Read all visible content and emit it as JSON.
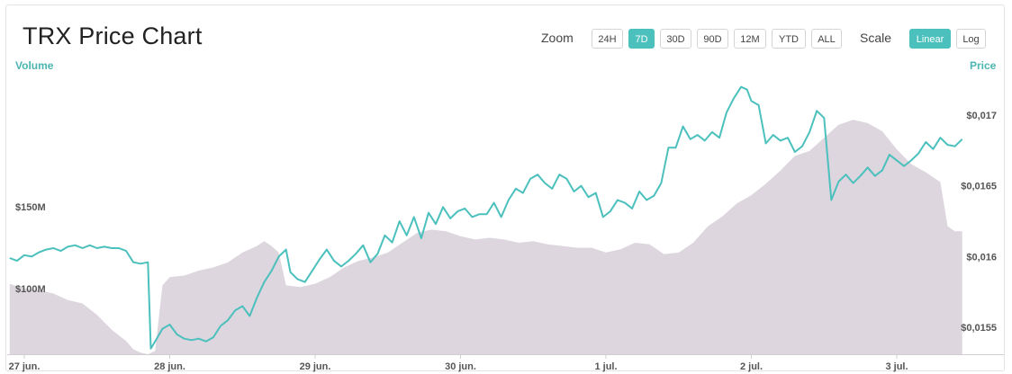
{
  "header": {
    "title": "TRX Price Chart",
    "zoom_label": "Zoom",
    "zoom_options": [
      "24H",
      "7D",
      "30D",
      "90D",
      "12M",
      "YTD",
      "ALL"
    ],
    "zoom_selected": "7D",
    "scale_label": "Scale",
    "scale_options": [
      "Linear",
      "Log"
    ],
    "scale_selected": "Linear"
  },
  "colors": {
    "price_line": "#4bc0bd",
    "volume_area": "#ddd6de",
    "active_button": "#4bc0bd"
  },
  "chart_data": {
    "type": "line",
    "title": "TRX Price Chart",
    "xlabel": "",
    "ylabel_left": "Volume",
    "ylabel_right": "Price",
    "x_ticks": [
      "27 jun.",
      "28 jun.",
      "29 jun.",
      "30 jun.",
      "1 jul.",
      "2 jul.",
      "3 jul."
    ],
    "x_range_days": [
      -0.1,
      6.45
    ],
    "price_axis": {
      "ticks": [
        "$0,017",
        "$0,0165",
        "$0,016",
        "$0,0155"
      ],
      "values": [
        0.017,
        0.0165,
        0.016,
        0.0155
      ],
      "range": [
        0.01531,
        0.01728
      ]
    },
    "volume_axis": {
      "ticks": [
        "$150M",
        "$100M"
      ],
      "values": [
        150000000,
        100000000
      ],
      "range": [
        60000000,
        230000000
      ]
    },
    "series": [
      {
        "name": "Price",
        "kind": "line",
        "points": [
          [
            -0.1,
            0.01599
          ],
          [
            -0.05,
            0.01597
          ],
          [
            0.0,
            0.01601
          ],
          [
            0.05,
            0.016
          ],
          [
            0.1,
            0.01603
          ],
          [
            0.15,
            0.01605
          ],
          [
            0.2,
            0.01606
          ],
          [
            0.25,
            0.01604
          ],
          [
            0.3,
            0.01607
          ],
          [
            0.35,
            0.01608
          ],
          [
            0.4,
            0.01606
          ],
          [
            0.45,
            0.01608
          ],
          [
            0.5,
            0.01606
          ],
          [
            0.55,
            0.01607
          ],
          [
            0.6,
            0.01606
          ],
          [
            0.65,
            0.01606
          ],
          [
            0.7,
            0.01604
          ],
          [
            0.75,
            0.01596
          ],
          [
            0.8,
            0.01595
          ],
          [
            0.85,
            0.01596
          ],
          [
            0.87,
            0.01535
          ],
          [
            0.9,
            0.0154
          ],
          [
            0.95,
            0.01549
          ],
          [
            1.0,
            0.01552
          ],
          [
            1.05,
            0.01545
          ],
          [
            1.1,
            0.01542
          ],
          [
            1.15,
            0.01541
          ],
          [
            1.2,
            0.01542
          ],
          [
            1.25,
            0.0154
          ],
          [
            1.3,
            0.01543
          ],
          [
            1.35,
            0.01551
          ],
          [
            1.4,
            0.01555
          ],
          [
            1.45,
            0.01562
          ],
          [
            1.5,
            0.01565
          ],
          [
            1.55,
            0.01558
          ],
          [
            1.6,
            0.01571
          ],
          [
            1.65,
            0.01582
          ],
          [
            1.7,
            0.0159
          ],
          [
            1.75,
            0.016
          ],
          [
            1.8,
            0.01605
          ],
          [
            1.83,
            0.01589
          ],
          [
            1.88,
            0.01584
          ],
          [
            1.93,
            0.01582
          ],
          [
            1.98,
            0.0159
          ],
          [
            2.03,
            0.01598
          ],
          [
            2.08,
            0.01605
          ],
          [
            2.13,
            0.01597
          ],
          [
            2.18,
            0.01593
          ],
          [
            2.23,
            0.01597
          ],
          [
            2.28,
            0.01602
          ],
          [
            2.33,
            0.01608
          ],
          [
            2.38,
            0.01596
          ],
          [
            2.43,
            0.01602
          ],
          [
            2.48,
            0.01615
          ],
          [
            2.53,
            0.0161
          ],
          [
            2.58,
            0.01625
          ],
          [
            2.63,
            0.01615
          ],
          [
            2.68,
            0.01628
          ],
          [
            2.73,
            0.01613
          ],
          [
            2.78,
            0.01631
          ],
          [
            2.83,
            0.01623
          ],
          [
            2.88,
            0.01635
          ],
          [
            2.93,
            0.01627
          ],
          [
            2.98,
            0.01632
          ],
          [
            3.03,
            0.01634
          ],
          [
            3.08,
            0.01628
          ],
          [
            3.13,
            0.0163
          ],
          [
            3.18,
            0.0163
          ],
          [
            3.23,
            0.01638
          ],
          [
            3.28,
            0.01628
          ],
          [
            3.33,
            0.0164
          ],
          [
            3.38,
            0.01648
          ],
          [
            3.43,
            0.01645
          ],
          [
            3.48,
            0.01655
          ],
          [
            3.53,
            0.01658
          ],
          [
            3.58,
            0.01652
          ],
          [
            3.63,
            0.01648
          ],
          [
            3.68,
            0.01658
          ],
          [
            3.73,
            0.01655
          ],
          [
            3.78,
            0.01646
          ],
          [
            3.83,
            0.0165
          ],
          [
            3.88,
            0.01642
          ],
          [
            3.93,
            0.01645
          ],
          [
            3.98,
            0.01628
          ],
          [
            4.03,
            0.01632
          ],
          [
            4.08,
            0.0164
          ],
          [
            4.13,
            0.01638
          ],
          [
            4.18,
            0.01634
          ],
          [
            4.23,
            0.01646
          ],
          [
            4.28,
            0.0164
          ],
          [
            4.33,
            0.01643
          ],
          [
            4.38,
            0.01652
          ],
          [
            4.43,
            0.01677
          ],
          [
            4.48,
            0.01677
          ],
          [
            4.53,
            0.01692
          ],
          [
            4.58,
            0.01683
          ],
          [
            4.63,
            0.01686
          ],
          [
            4.68,
            0.01682
          ],
          [
            4.73,
            0.01688
          ],
          [
            4.78,
            0.01684
          ],
          [
            4.83,
            0.01702
          ],
          [
            4.88,
            0.01712
          ],
          [
            4.93,
            0.0172
          ],
          [
            4.97,
            0.01718
          ],
          [
            5.0,
            0.0171
          ],
          [
            5.05,
            0.01707
          ],
          [
            5.1,
            0.0168
          ],
          [
            5.15,
            0.01686
          ],
          [
            5.2,
            0.01682
          ],
          [
            5.25,
            0.01684
          ],
          [
            5.3,
            0.01674
          ],
          [
            5.35,
            0.01678
          ],
          [
            5.4,
            0.01688
          ],
          [
            5.45,
            0.01703
          ],
          [
            5.5,
            0.01698
          ],
          [
            5.55,
            0.0164
          ],
          [
            5.6,
            0.01653
          ],
          [
            5.65,
            0.01658
          ],
          [
            5.7,
            0.01652
          ],
          [
            5.75,
            0.01657
          ],
          [
            5.8,
            0.01663
          ],
          [
            5.85,
            0.01657
          ],
          [
            5.9,
            0.01661
          ],
          [
            5.95,
            0.01672
          ],
          [
            6.0,
            0.01668
          ],
          [
            6.05,
            0.01664
          ],
          [
            6.1,
            0.01668
          ],
          [
            6.15,
            0.01673
          ],
          [
            6.2,
            0.01681
          ],
          [
            6.25,
            0.01676
          ],
          [
            6.3,
            0.01684
          ],
          [
            6.35,
            0.01679
          ],
          [
            6.4,
            0.01678
          ],
          [
            6.45,
            0.01683
          ]
        ]
      },
      {
        "name": "Volume",
        "kind": "area",
        "points": [
          [
            -0.1,
            103000000
          ],
          [
            0.0,
            100000000
          ],
          [
            0.1,
            99000000
          ],
          [
            0.2,
            97000000
          ],
          [
            0.3,
            93000000
          ],
          [
            0.4,
            91000000
          ],
          [
            0.5,
            84000000
          ],
          [
            0.6,
            75000000
          ],
          [
            0.7,
            68000000
          ],
          [
            0.75,
            63000000
          ],
          [
            0.8,
            61000000
          ],
          [
            0.85,
            60000000
          ],
          [
            0.9,
            62000000
          ],
          [
            0.95,
            102000000
          ],
          [
            1.0,
            107000000
          ],
          [
            1.1,
            108000000
          ],
          [
            1.2,
            111000000
          ],
          [
            1.3,
            113000000
          ],
          [
            1.4,
            116000000
          ],
          [
            1.5,
            122000000
          ],
          [
            1.6,
            126000000
          ],
          [
            1.65,
            129000000
          ],
          [
            1.7,
            126000000
          ],
          [
            1.75,
            122000000
          ],
          [
            1.8,
            102000000
          ],
          [
            1.9,
            101000000
          ],
          [
            2.0,
            103000000
          ],
          [
            2.1,
            107000000
          ],
          [
            2.2,
            113000000
          ],
          [
            2.3,
            117000000
          ],
          [
            2.4,
            119000000
          ],
          [
            2.5,
            122000000
          ],
          [
            2.6,
            128000000
          ],
          [
            2.7,
            134000000
          ],
          [
            2.8,
            136000000
          ],
          [
            2.9,
            135000000
          ],
          [
            3.0,
            132000000
          ],
          [
            3.1,
            130000000
          ],
          [
            3.2,
            131000000
          ],
          [
            3.3,
            130000000
          ],
          [
            3.4,
            128000000
          ],
          [
            3.5,
            129000000
          ],
          [
            3.6,
            127000000
          ],
          [
            3.7,
            126000000
          ],
          [
            3.8,
            125000000
          ],
          [
            3.9,
            125000000
          ],
          [
            4.0,
            122000000
          ],
          [
            4.1,
            124000000
          ],
          [
            4.2,
            128000000
          ],
          [
            4.3,
            127000000
          ],
          [
            4.4,
            121000000
          ],
          [
            4.5,
            122000000
          ],
          [
            4.6,
            128000000
          ],
          [
            4.7,
            138000000
          ],
          [
            4.8,
            144000000
          ],
          [
            4.9,
            152000000
          ],
          [
            5.0,
            157000000
          ],
          [
            5.1,
            164000000
          ],
          [
            5.2,
            172000000
          ],
          [
            5.3,
            181000000
          ],
          [
            5.4,
            184000000
          ],
          [
            5.5,
            192000000
          ],
          [
            5.6,
            200000000
          ],
          [
            5.7,
            203000000
          ],
          [
            5.8,
            201000000
          ],
          [
            5.9,
            196000000
          ],
          [
            6.0,
            185000000
          ],
          [
            6.1,
            176000000
          ],
          [
            6.2,
            171000000
          ],
          [
            6.3,
            165000000
          ],
          [
            6.35,
            138000000
          ],
          [
            6.4,
            135000000
          ],
          [
            6.45,
            135000000
          ]
        ]
      }
    ],
    "grid": false,
    "legend": "none"
  }
}
